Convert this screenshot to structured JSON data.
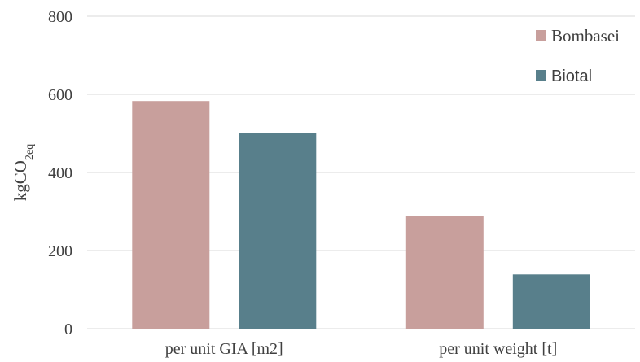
{
  "chart_data": {
    "type": "bar",
    "categories": [
      "per unit GIA [m2]",
      "per unit weight [t]"
    ],
    "series": [
      {
        "name": "Bombasei",
        "values": [
          583,
          289
        ],
        "color": "#c89f9c"
      },
      {
        "name": "Biotal",
        "values": [
          501,
          139
        ],
        "color": "#587f8b"
      }
    ],
    "ylabel": {
      "main": "kgCO",
      "sub": "2eq"
    },
    "ylim": [
      0,
      800
    ],
    "yticks": [
      "0",
      "200",
      "400",
      "600",
      "800"
    ],
    "grid": true,
    "legend": "top-right"
  }
}
